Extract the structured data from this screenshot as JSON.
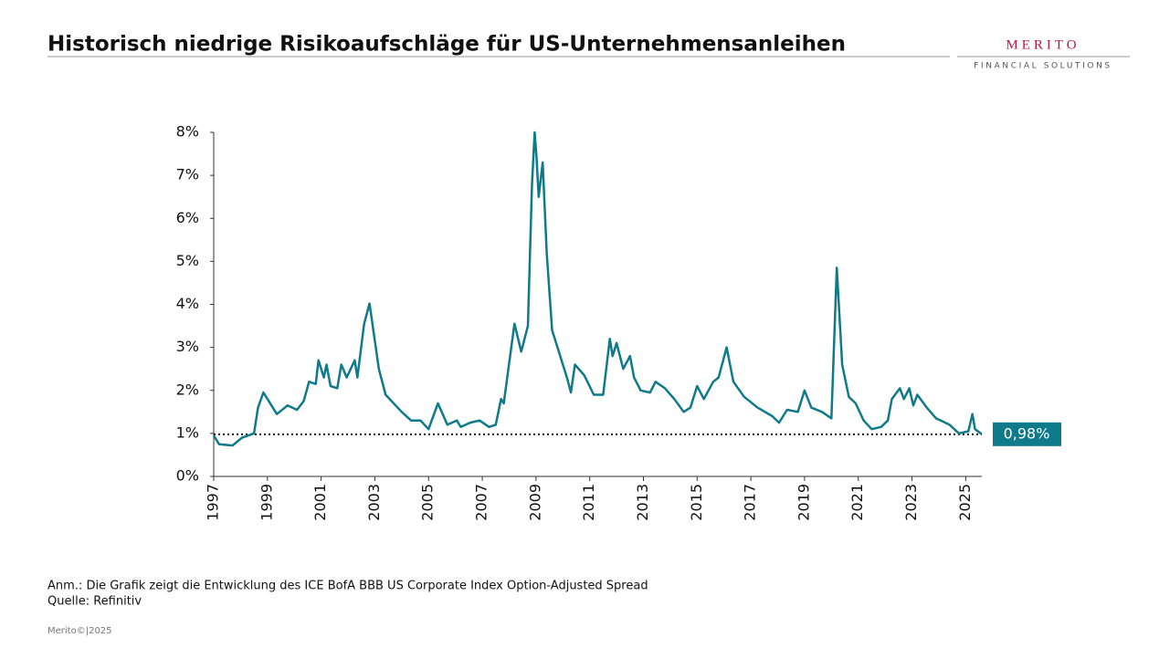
{
  "header": {
    "title": "Historisch niedrige Risikoaufschläge für US-Unternehmensanleihen",
    "logo": "MERITO",
    "logo_subtitle": "FINANCIAL SOLUTIONS"
  },
  "chart_data": {
    "type": "line",
    "color": "#0f7a8a",
    "x": [
      1997.0,
      1997.2,
      1997.7,
      1998.05,
      1998.5,
      1998.65,
      1998.85,
      1999.1,
      1999.35,
      1999.75,
      2000.1,
      2000.35,
      2000.55,
      2000.8,
      2000.9,
      2001.1,
      2001.2,
      2001.35,
      2001.6,
      2001.75,
      2001.95,
      2002.25,
      2002.35,
      2002.6,
      2002.8,
      2003.15,
      2003.4,
      2004.0,
      2004.35,
      2004.7,
      2005.0,
      2005.35,
      2005.7,
      2006.05,
      2006.2,
      2006.55,
      2006.9,
      2007.25,
      2007.5,
      2007.7,
      2007.8,
      2007.95,
      2008.2,
      2008.45,
      2008.7,
      2008.85,
      2008.95,
      2009.02,
      2009.1,
      2009.25,
      2009.4,
      2009.6,
      2009.8,
      2010.15,
      2010.3,
      2010.45,
      2010.8,
      2011.15,
      2011.5,
      2011.75,
      2011.85,
      2012.0,
      2012.25,
      2012.5,
      2012.65,
      2012.9,
      2013.25,
      2013.45,
      2013.8,
      2014.15,
      2014.5,
      2014.75,
      2015.0,
      2015.25,
      2015.6,
      2015.8,
      2016.1,
      2016.35,
      2016.75,
      2017.25,
      2017.8,
      2018.05,
      2018.35,
      2018.75,
      2019.0,
      2019.25,
      2019.65,
      2020.0,
      2020.2,
      2020.4,
      2020.65,
      2020.9,
      2021.2,
      2021.5,
      2021.85,
      2022.1,
      2022.25,
      2022.55,
      2022.7,
      2022.9,
      2023.05,
      2023.2,
      2023.55,
      2023.9,
      2024.4,
      2024.75,
      2025.1,
      2025.25,
      2025.35,
      2025.6
    ],
    "values": [
      0.95,
      0.75,
      0.72,
      0.9,
      1.0,
      1.6,
      1.95,
      1.7,
      1.45,
      1.65,
      1.55,
      1.75,
      2.2,
      2.15,
      2.7,
      2.3,
      2.6,
      2.1,
      2.05,
      2.6,
      2.3,
      2.7,
      2.3,
      3.55,
      4.02,
      2.5,
      1.9,
      1.5,
      1.3,
      1.3,
      1.1,
      1.7,
      1.2,
      1.3,
      1.15,
      1.25,
      1.3,
      1.15,
      1.2,
      1.8,
      1.7,
      2.4,
      3.55,
      2.9,
      3.5,
      6.8,
      8.0,
      7.4,
      6.5,
      7.3,
      5.2,
      3.4,
      3.0,
      2.3,
      1.95,
      2.6,
      2.35,
      1.9,
      1.9,
      3.2,
      2.8,
      3.1,
      2.5,
      2.8,
      2.3,
      2.0,
      1.95,
      2.2,
      2.05,
      1.8,
      1.5,
      1.6,
      2.1,
      1.8,
      2.2,
      2.3,
      3.0,
      2.2,
      1.85,
      1.6,
      1.4,
      1.25,
      1.55,
      1.5,
      2.0,
      1.6,
      1.5,
      1.35,
      4.85,
      2.6,
      1.85,
      1.7,
      1.3,
      1.1,
      1.15,
      1.3,
      1.8,
      2.05,
      1.8,
      2.05,
      1.65,
      1.9,
      1.6,
      1.35,
      1.2,
      1.0,
      1.05,
      1.45,
      1.1,
      0.98
    ],
    "xlim": [
      1997,
      2025.6
    ],
    "xticks": [
      1997,
      1999,
      2001,
      2003,
      2005,
      2007,
      2009,
      2011,
      2013,
      2015,
      2017,
      2019,
      2021,
      2023,
      2025
    ],
    "ylim": [
      0,
      8
    ],
    "yticks": [
      {
        "value": 0,
        "label": "0%"
      },
      {
        "value": 1,
        "label": "1%"
      },
      {
        "value": 2,
        "label": "2%"
      },
      {
        "value": 3,
        "label": "3%"
      },
      {
        "value": 4,
        "label": "4%"
      },
      {
        "value": 5,
        "label": "5%"
      },
      {
        "value": 6,
        "label": "6%"
      },
      {
        "value": 7,
        "label": "7%"
      },
      {
        "value": 8,
        "label": "8%"
      }
    ],
    "reference_line": {
      "value": 0.98,
      "label": "0,98%"
    }
  },
  "notes": [
    "Anm.: Die Grafik zeigt die Entwicklung des ICE BofA BBB US Corporate Index Option-Adjusted Spread",
    "Quelle: Refinitiv"
  ],
  "footer": "Merito©|2025"
}
